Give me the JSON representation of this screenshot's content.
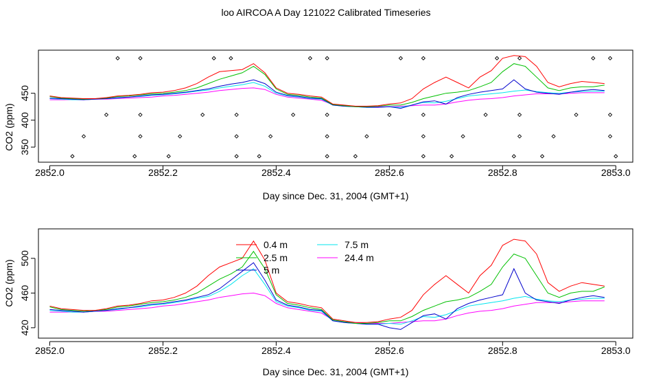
{
  "title": "loo AIRCOA A  Day 121022  Calibrated Timeseries",
  "colors": {
    "0.4 m": "#ff0000",
    "2.5 m": "#00c000",
    "5 m": "#0000cc",
    "7.5 m": "#00e5ee",
    "24.4 m": "#ff00ff",
    "frame": "#000000",
    "marker": "#000000"
  },
  "chart_data": [
    {
      "type": "line",
      "xlabel": "Day since Dec. 31, 2004 (GMT+1)",
      "ylabel": "CO2 (ppm)",
      "xlim": [
        2851.98,
        2853.03
      ],
      "ylim": [
        322,
        530
      ],
      "xticks": [
        2852.0,
        2852.2,
        2852.4,
        2852.6,
        2852.8,
        2853.0
      ],
      "xtick_labels": [
        "2852.0",
        "2852.2",
        "2852.4",
        "2852.6",
        "2852.8",
        "2853.0"
      ],
      "yticks": [
        350,
        400,
        450
      ],
      "ytick_labels": [
        "350",
        "400",
        "450"
      ],
      "markers": {
        "rows": [
          {
            "y": 515,
            "x": [
              2852.12,
              2852.16,
              2852.29,
              2852.32,
              2852.46,
              2852.49,
              2852.62,
              2852.66,
              2852.79,
              2852.83,
              2852.96,
              2852.99
            ]
          },
          {
            "y": 410,
            "x": [
              2852.1,
              2852.16,
              2852.27,
              2852.33,
              2852.43,
              2852.49,
              2852.6,
              2852.66,
              2852.77,
              2852.83,
              2852.93,
              2852.99
            ]
          },
          {
            "y": 370,
            "x": [
              2852.06,
              2852.16,
              2852.23,
              2852.33,
              2852.39,
              2852.49,
              2852.56,
              2852.66,
              2852.73,
              2852.83,
              2852.89,
              2852.99
            ]
          },
          {
            "y": 333,
            "x": [
              2852.04,
              2852.15,
              2852.21,
              2852.33,
              2852.37,
              2852.49,
              2852.54,
              2852.66,
              2852.71,
              2852.82,
              2852.87,
              2853.0
            ]
          }
        ]
      },
      "x": [
        2852.0,
        2852.02,
        2852.04,
        2852.06,
        2852.08,
        2852.1,
        2852.12,
        2852.14,
        2852.16,
        2852.18,
        2852.2,
        2852.22,
        2852.24,
        2852.26,
        2852.28,
        2852.3,
        2852.32,
        2852.34,
        2852.36,
        2852.38,
        2852.4,
        2852.42,
        2852.44,
        2852.46,
        2852.48,
        2852.5,
        2852.52,
        2852.54,
        2852.56,
        2852.58,
        2852.6,
        2852.62,
        2852.64,
        2852.66,
        2852.68,
        2852.7,
        2852.72,
        2852.74,
        2852.76,
        2852.78,
        2852.8,
        2852.82,
        2852.84,
        2852.86,
        2852.88,
        2852.9,
        2852.92,
        2852.94,
        2852.96,
        2852.98
      ],
      "series": [
        {
          "name": "0.4 m",
          "values": [
            445,
            442,
            441,
            440,
            440,
            442,
            445,
            446,
            448,
            451,
            452,
            455,
            460,
            468,
            480,
            490,
            492,
            494,
            505,
            488,
            460,
            450,
            448,
            445,
            443,
            430,
            428,
            426,
            426,
            427,
            430,
            432,
            440,
            458,
            470,
            480,
            470,
            460,
            480,
            492,
            515,
            520,
            518,
            500,
            470,
            462,
            468,
            472,
            470,
            468
          ]
        },
        {
          "name": "2.5 m",
          "values": [
            444,
            441,
            440,
            439,
            440,
            441,
            444,
            445,
            447,
            449,
            450,
            452,
            455,
            460,
            468,
            476,
            482,
            488,
            500,
            485,
            458,
            448,
            446,
            443,
            441,
            429,
            427,
            425,
            425,
            426,
            428,
            428,
            433,
            440,
            445,
            450,
            452,
            455,
            462,
            470,
            490,
            505,
            500,
            480,
            460,
            455,
            460,
            462,
            462,
            465
          ]
        },
        {
          "name": "5 m",
          "values": [
            441,
            440,
            439,
            438,
            439,
            440,
            442,
            443,
            445,
            447,
            448,
            450,
            452,
            455,
            458,
            463,
            467,
            470,
            475,
            468,
            452,
            446,
            444,
            441,
            440,
            428,
            426,
            425,
            424,
            424,
            425,
            422,
            428,
            434,
            436,
            430,
            442,
            448,
            452,
            455,
            458,
            475,
            458,
            452,
            450,
            448,
            452,
            455,
            457,
            455
          ]
        },
        {
          "name": "7.5 m",
          "values": [
            440,
            439,
            438,
            438,
            439,
            440,
            441,
            443,
            444,
            446,
            447,
            449,
            451,
            454,
            456,
            460,
            463,
            466,
            470,
            463,
            450,
            445,
            443,
            440,
            439,
            428,
            426,
            425,
            424,
            424,
            425,
            424,
            428,
            433,
            432,
            435,
            440,
            445,
            447,
            449,
            451,
            454,
            456,
            453,
            451,
            450,
            452,
            453,
            454,
            454
          ]
        },
        {
          "name": "24.4 m",
          "values": [
            438,
            438,
            438,
            438,
            439,
            439,
            440,
            441,
            442,
            443,
            445,
            446,
            448,
            450,
            452,
            455,
            457,
            459,
            460,
            457,
            448,
            443,
            441,
            439,
            437,
            429,
            427,
            426,
            425,
            425,
            425,
            426,
            427,
            428,
            428,
            430,
            434,
            437,
            439,
            440,
            442,
            445,
            447,
            449,
            449,
            449,
            450,
            451,
            451,
            451
          ]
        }
      ]
    },
    {
      "type": "line",
      "xlabel": "Day since Dec. 31, 2004 (GMT+1)",
      "ylabel": "CO2 (ppm)",
      "xlim": [
        2851.98,
        2853.03
      ],
      "ylim": [
        408,
        534
      ],
      "xticks": [
        2852.0,
        2852.2,
        2852.4,
        2852.6,
        2852.8,
        2853.0
      ],
      "xtick_labels": [
        "2852.0",
        "2852.2",
        "2852.4",
        "2852.6",
        "2852.8",
        "2853.0"
      ],
      "yticks": [
        420,
        460,
        500
      ],
      "ytick_labels": [
        "420",
        "460",
        "500"
      ],
      "legend": {
        "placement": "top-center",
        "entries": [
          {
            "label": "0.4 m",
            "color": "#ff0000"
          },
          {
            "label": "7.5 m",
            "color": "#00e5ee"
          },
          {
            "label": "2.5 m",
            "color": "#00c000"
          },
          {
            "label": "24.4 m",
            "color": "#ff00ff"
          },
          {
            "label": "5 m",
            "color": "#0000cc"
          }
        ]
      },
      "x": [
        2852.0,
        2852.02,
        2852.04,
        2852.06,
        2852.08,
        2852.1,
        2852.12,
        2852.14,
        2852.16,
        2852.18,
        2852.2,
        2852.22,
        2852.24,
        2852.26,
        2852.28,
        2852.3,
        2852.32,
        2852.34,
        2852.36,
        2852.38,
        2852.4,
        2852.42,
        2852.44,
        2852.46,
        2852.48,
        2852.5,
        2852.52,
        2852.54,
        2852.56,
        2852.58,
        2852.6,
        2852.62,
        2852.64,
        2852.66,
        2852.68,
        2852.7,
        2852.72,
        2852.74,
        2852.76,
        2852.78,
        2852.8,
        2852.82,
        2852.84,
        2852.86,
        2852.88,
        2852.9,
        2852.92,
        2852.94,
        2852.96,
        2852.98
      ],
      "series": [
        {
          "name": "0.4 m",
          "values": [
            445,
            442,
            441,
            440,
            440,
            442,
            445,
            446,
            448,
            451,
            452,
            455,
            460,
            468,
            480,
            490,
            495,
            500,
            520,
            498,
            460,
            450,
            448,
            445,
            443,
            430,
            428,
            426,
            426,
            427,
            430,
            432,
            440,
            458,
            470,
            480,
            470,
            460,
            480,
            492,
            515,
            522,
            520,
            505,
            472,
            462,
            468,
            472,
            470,
            468
          ]
        },
        {
          "name": "2.5 m",
          "values": [
            444,
            441,
            440,
            439,
            440,
            441,
            444,
            445,
            447,
            449,
            450,
            452,
            455,
            460,
            468,
            476,
            482,
            490,
            508,
            488,
            458,
            448,
            446,
            443,
            441,
            429,
            427,
            425,
            425,
            426,
            428,
            428,
            433,
            440,
            445,
            450,
            452,
            455,
            462,
            470,
            490,
            505,
            500,
            480,
            460,
            455,
            460,
            462,
            462,
            467
          ]
        },
        {
          "name": "5 m",
          "values": [
            441,
            440,
            439,
            438,
            439,
            440,
            442,
            443,
            445,
            447,
            448,
            450,
            452,
            455,
            458,
            465,
            475,
            485,
            495,
            475,
            452,
            446,
            444,
            441,
            440,
            428,
            426,
            425,
            424,
            424,
            420,
            418,
            426,
            434,
            436,
            430,
            442,
            448,
            452,
            455,
            458,
            488,
            460,
            452,
            450,
            448,
            452,
            455,
            457,
            455
          ]
        },
        {
          "name": "7.5 m",
          "values": [
            440,
            439,
            438,
            438,
            439,
            440,
            441,
            443,
            444,
            446,
            447,
            449,
            451,
            454,
            456,
            462,
            470,
            480,
            488,
            470,
            450,
            445,
            443,
            440,
            439,
            428,
            426,
            425,
            424,
            424,
            425,
            424,
            428,
            433,
            432,
            435,
            440,
            445,
            447,
            449,
            451,
            454,
            456,
            453,
            451,
            450,
            452,
            453,
            454,
            454
          ]
        },
        {
          "name": "24.4 m",
          "values": [
            438,
            438,
            438,
            438,
            439,
            439,
            440,
            441,
            442,
            443,
            445,
            446,
            448,
            450,
            452,
            455,
            457,
            459,
            460,
            457,
            448,
            443,
            441,
            439,
            437,
            429,
            427,
            426,
            425,
            425,
            425,
            426,
            427,
            428,
            428,
            430,
            434,
            437,
            439,
            440,
            442,
            445,
            447,
            449,
            449,
            449,
            450,
            451,
            451,
            451
          ]
        }
      ]
    }
  ]
}
